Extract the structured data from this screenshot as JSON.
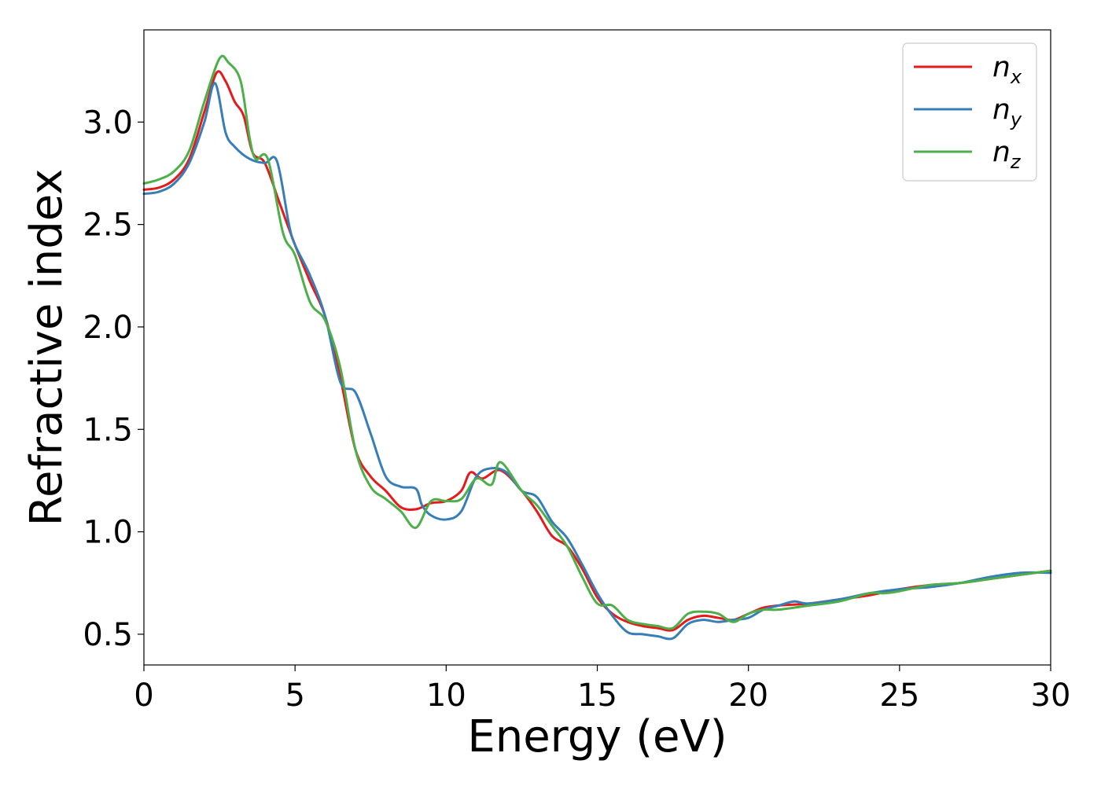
{
  "chart_data": {
    "type": "line",
    "xlabel": "Energy (eV)",
    "ylabel": "Refractive index",
    "xlim": [
      0,
      30
    ],
    "ylim": [
      0.35,
      3.45
    ],
    "xticks": [
      0,
      5,
      10,
      15,
      20,
      25,
      30
    ],
    "xtick_labels": [
      "0",
      "5",
      "10",
      "15",
      "20",
      "25",
      "30"
    ],
    "yticks": [
      0.5,
      1.0,
      1.5,
      2.0,
      2.5,
      3.0
    ],
    "ytick_labels": [
      "0.5",
      "1.0",
      "1.5",
      "2.0",
      "2.5",
      "3.0"
    ],
    "grid": false,
    "legend_position": "top-right",
    "series": [
      {
        "name": "n",
        "subscript": "x",
        "color": "#e41a1c",
        "points": [
          [
            0,
            2.67
          ],
          [
            0.5,
            2.68
          ],
          [
            1,
            2.72
          ],
          [
            1.5,
            2.82
          ],
          [
            2,
            3.05
          ],
          [
            2.4,
            3.24
          ],
          [
            2.7,
            3.2
          ],
          [
            3,
            3.1
          ],
          [
            3.3,
            3.03
          ],
          [
            3.6,
            2.85
          ],
          [
            4,
            2.8
          ],
          [
            4.5,
            2.6
          ],
          [
            5,
            2.4
          ],
          [
            5.5,
            2.22
          ],
          [
            6,
            2.05
          ],
          [
            6.5,
            1.75
          ],
          [
            7,
            1.4
          ],
          [
            7.5,
            1.27
          ],
          [
            8,
            1.2
          ],
          [
            8.5,
            1.12
          ],
          [
            9,
            1.11
          ],
          [
            9.5,
            1.14
          ],
          [
            10,
            1.15
          ],
          [
            10.5,
            1.2
          ],
          [
            10.8,
            1.29
          ],
          [
            11.2,
            1.26
          ],
          [
            11.8,
            1.3
          ],
          [
            12.5,
            1.2
          ],
          [
            13,
            1.1
          ],
          [
            13.5,
            0.98
          ],
          [
            14,
            0.93
          ],
          [
            14.5,
            0.82
          ],
          [
            15,
            0.68
          ],
          [
            15.5,
            0.6
          ],
          [
            16,
            0.56
          ],
          [
            16.5,
            0.54
          ],
          [
            17,
            0.53
          ],
          [
            17.5,
            0.52
          ],
          [
            18,
            0.57
          ],
          [
            18.5,
            0.59
          ],
          [
            19,
            0.58
          ],
          [
            19.5,
            0.57
          ],
          [
            20,
            0.6
          ],
          [
            20.5,
            0.63
          ],
          [
            21,
            0.64
          ],
          [
            22,
            0.65
          ],
          [
            23,
            0.67
          ],
          [
            24,
            0.69
          ],
          [
            25,
            0.72
          ],
          [
            26,
            0.74
          ],
          [
            27,
            0.75
          ],
          [
            28,
            0.77
          ],
          [
            29,
            0.79
          ],
          [
            30,
            0.81
          ]
        ]
      },
      {
        "name": "n",
        "subscript": "y",
        "color": "#377eb8",
        "points": [
          [
            0,
            2.65
          ],
          [
            0.5,
            2.66
          ],
          [
            1,
            2.7
          ],
          [
            1.5,
            2.8
          ],
          [
            2,
            3.0
          ],
          [
            2.35,
            3.19
          ],
          [
            2.7,
            2.95
          ],
          [
            3,
            2.88
          ],
          [
            3.5,
            2.82
          ],
          [
            4,
            2.8
          ],
          [
            4.4,
            2.81
          ],
          [
            4.8,
            2.5
          ],
          [
            5,
            2.4
          ],
          [
            5.5,
            2.25
          ],
          [
            6,
            2.05
          ],
          [
            6.5,
            1.73
          ],
          [
            7,
            1.68
          ],
          [
            7.5,
            1.48
          ],
          [
            8,
            1.27
          ],
          [
            8.5,
            1.22
          ],
          [
            9,
            1.21
          ],
          [
            9.2,
            1.13
          ],
          [
            9.5,
            1.08
          ],
          [
            10,
            1.06
          ],
          [
            10.5,
            1.1
          ],
          [
            11,
            1.27
          ],
          [
            11.5,
            1.31
          ],
          [
            12,
            1.29
          ],
          [
            12.5,
            1.2
          ],
          [
            13,
            1.17
          ],
          [
            13.5,
            1.05
          ],
          [
            14,
            0.97
          ],
          [
            14.5,
            0.84
          ],
          [
            15,
            0.7
          ],
          [
            15.5,
            0.59
          ],
          [
            16,
            0.51
          ],
          [
            16.5,
            0.5
          ],
          [
            17,
            0.49
          ],
          [
            17.5,
            0.48
          ],
          [
            18,
            0.55
          ],
          [
            18.5,
            0.57
          ],
          [
            19,
            0.56
          ],
          [
            19.5,
            0.57
          ],
          [
            20,
            0.58
          ],
          [
            20.5,
            0.62
          ],
          [
            21,
            0.64
          ],
          [
            21.5,
            0.66
          ],
          [
            22,
            0.65
          ],
          [
            23,
            0.67
          ],
          [
            24,
            0.7
          ],
          [
            25,
            0.72
          ],
          [
            26,
            0.73
          ],
          [
            27,
            0.75
          ],
          [
            28,
            0.78
          ],
          [
            29,
            0.8
          ],
          [
            30,
            0.8
          ]
        ]
      },
      {
        "name": "n",
        "subscript": "z",
        "color": "#4daf4a",
        "points": [
          [
            0,
            2.7
          ],
          [
            0.5,
            2.72
          ],
          [
            1,
            2.76
          ],
          [
            1.5,
            2.86
          ],
          [
            2,
            3.1
          ],
          [
            2.5,
            3.31
          ],
          [
            2.8,
            3.29
          ],
          [
            3.2,
            3.2
          ],
          [
            3.5,
            2.92
          ],
          [
            3.7,
            2.82
          ],
          [
            4.1,
            2.82
          ],
          [
            4.6,
            2.46
          ],
          [
            5,
            2.35
          ],
          [
            5.5,
            2.12
          ],
          [
            6,
            2.03
          ],
          [
            6.5,
            1.8
          ],
          [
            7,
            1.4
          ],
          [
            7.5,
            1.22
          ],
          [
            8,
            1.16
          ],
          [
            8.5,
            1.1
          ],
          [
            9,
            1.02
          ],
          [
            9.5,
            1.15
          ],
          [
            10,
            1.15
          ],
          [
            10.5,
            1.16
          ],
          [
            11,
            1.26
          ],
          [
            11.5,
            1.23
          ],
          [
            11.8,
            1.34
          ],
          [
            12.5,
            1.2
          ],
          [
            13,
            1.13
          ],
          [
            13.5,
            1.03
          ],
          [
            14,
            0.93
          ],
          [
            14.5,
            0.78
          ],
          [
            15,
            0.65
          ],
          [
            15.5,
            0.64
          ],
          [
            16,
            0.57
          ],
          [
            16.5,
            0.55
          ],
          [
            17,
            0.54
          ],
          [
            17.5,
            0.53
          ],
          [
            18,
            0.6
          ],
          [
            18.5,
            0.61
          ],
          [
            19,
            0.6
          ],
          [
            19.5,
            0.56
          ],
          [
            20,
            0.6
          ],
          [
            20.5,
            0.62
          ],
          [
            21,
            0.62
          ],
          [
            22,
            0.64
          ],
          [
            23,
            0.66
          ],
          [
            24,
            0.7
          ],
          [
            24.5,
            0.7
          ],
          [
            25,
            0.71
          ],
          [
            26,
            0.74
          ],
          [
            27,
            0.75
          ],
          [
            28,
            0.77
          ],
          [
            29,
            0.79
          ],
          [
            30,
            0.81
          ]
        ]
      }
    ]
  }
}
